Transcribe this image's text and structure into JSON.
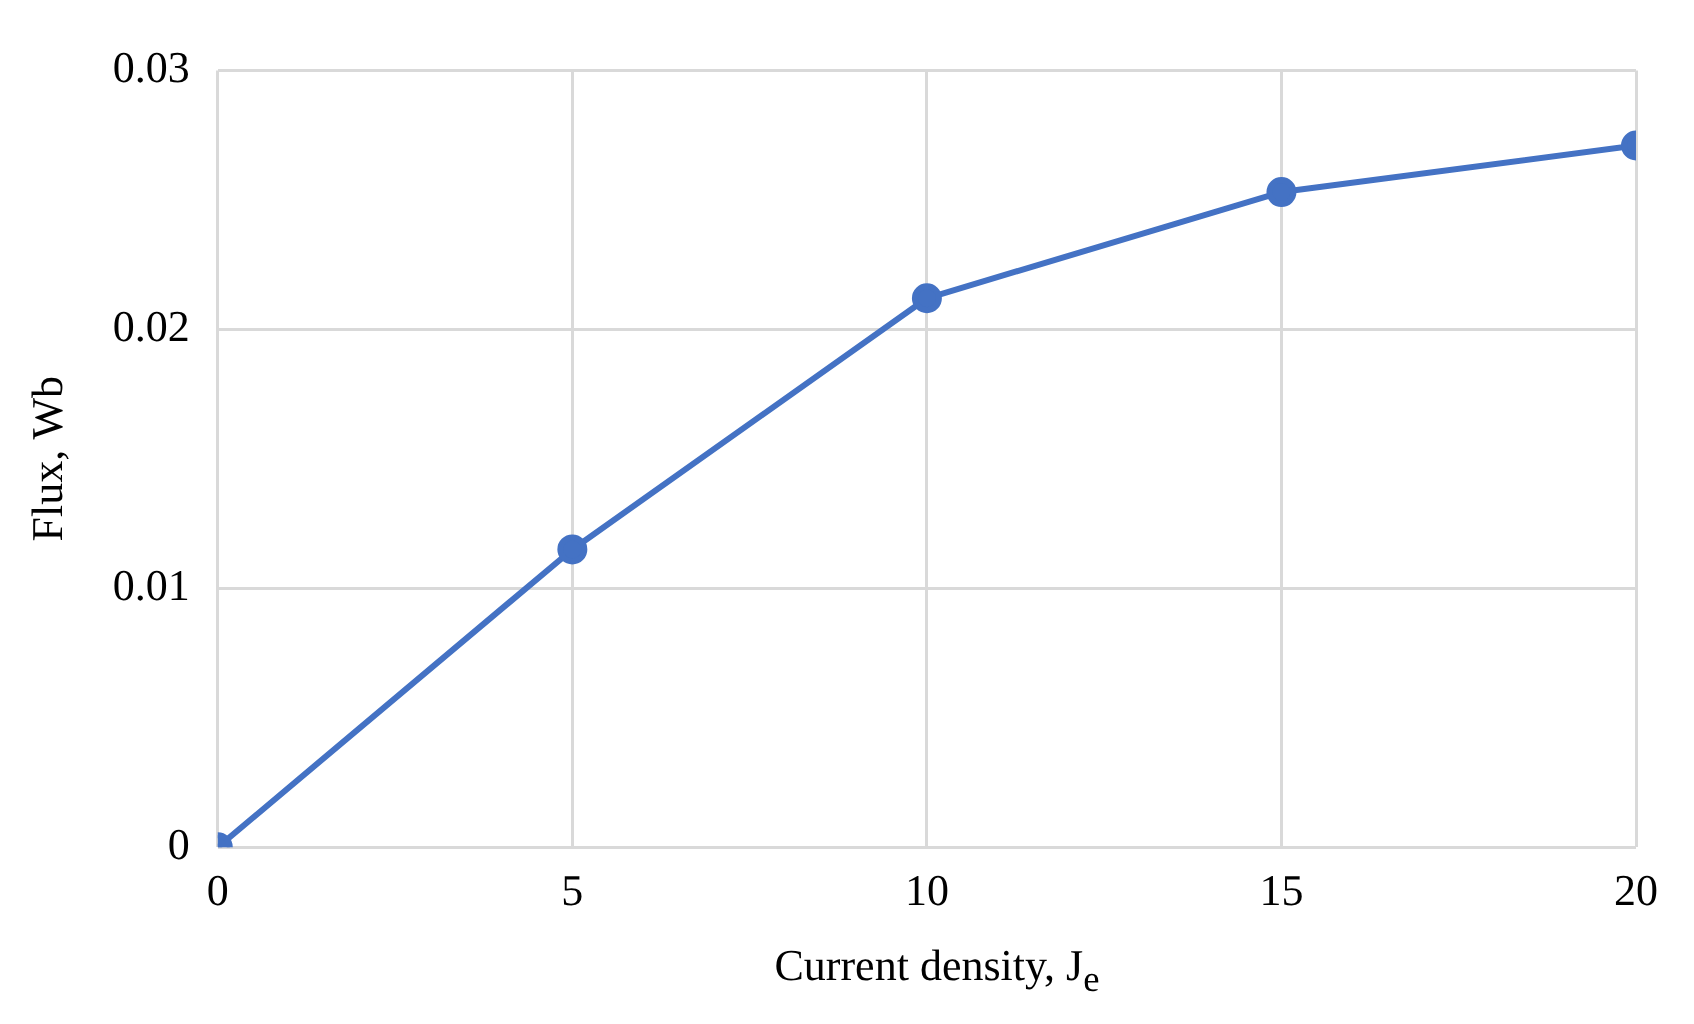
{
  "chart_data": {
    "type": "line",
    "xlabel": "Current density, J$_{e}$",
    "ylabel": "Flux, Wb",
    "x": [
      0,
      5,
      10,
      15,
      20
    ],
    "series": [
      {
        "color": "#4472c4",
        "values": [
          0,
          0.0115,
          0.0212,
          0.0253,
          0.0271
        ]
      }
    ],
    "xlim": [
      0,
      20
    ],
    "xticks": [
      0,
      5,
      10,
      15,
      20
    ],
    "ylim": [
      0,
      0.03
    ],
    "yticks": [
      0,
      0.01,
      0.02,
      0.03
    ],
    "grid": true,
    "marker": "circle",
    "line_style": "solid"
  }
}
